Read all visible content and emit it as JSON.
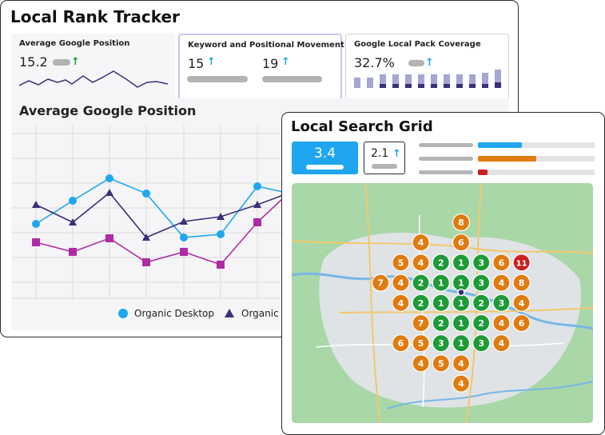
{
  "tracker": {
    "title": "Local Rank Tracker",
    "card1": {
      "title": "Average Google Position",
      "value": "15.2",
      "trend": "up"
    },
    "card2": {
      "title": "Keyword and Positional Movement",
      "value_a": "15",
      "value_b": "19"
    },
    "card3": {
      "title": "Google Local Pack Coverage",
      "value": "32.7%"
    },
    "chart_title": "Average Google Position",
    "legend": [
      "Organic Desktop",
      "Organic"
    ]
  },
  "grid_panel": {
    "title": "Local Search Grid",
    "primary_value": "3.4",
    "secondary_value": "2.1",
    "bars": [
      {
        "fill": 0.38,
        "color": "#1fa6f0"
      },
      {
        "fill": 0.5,
        "color": "#e07b10"
      },
      {
        "fill": 0.08,
        "color": "#cc1f1f"
      }
    ],
    "colors": {
      "green": "#1e9a36",
      "orange": "#e07b10",
      "red": "#cc1f1f"
    },
    "grid_pins": [
      {
        "r": 0,
        "c": 0,
        "v": "8",
        "s": "orange"
      },
      {
        "r": 1,
        "c": -2,
        "v": "4",
        "s": "orange"
      },
      {
        "r": 1,
        "c": 0,
        "v": "6",
        "s": "orange"
      },
      {
        "r": 2,
        "c": -3,
        "v": "5",
        "s": "orange"
      },
      {
        "r": 2,
        "c": -2,
        "v": "4",
        "s": "orange"
      },
      {
        "r": 2,
        "c": -1,
        "v": "2",
        "s": "green"
      },
      {
        "r": 2,
        "c": 0,
        "v": "1",
        "s": "green"
      },
      {
        "r": 2,
        "c": 1,
        "v": "3",
        "s": "green"
      },
      {
        "r": 2,
        "c": 2,
        "v": "6",
        "s": "orange"
      },
      {
        "r": 2,
        "c": 3,
        "v": "11",
        "s": "red"
      },
      {
        "r": 3,
        "c": -4,
        "v": "7",
        "s": "orange"
      },
      {
        "r": 3,
        "c": -3,
        "v": "4",
        "s": "orange"
      },
      {
        "r": 3,
        "c": -2,
        "v": "2",
        "s": "green"
      },
      {
        "r": 3,
        "c": -1,
        "v": "1",
        "s": "green"
      },
      {
        "r": 3,
        "c": 0,
        "v": "1",
        "s": "green"
      },
      {
        "r": 3,
        "c": 1,
        "v": "3",
        "s": "green"
      },
      {
        "r": 3,
        "c": 2,
        "v": "4",
        "s": "orange"
      },
      {
        "r": 3,
        "c": 3,
        "v": "8",
        "s": "orange"
      },
      {
        "r": 4,
        "c": -3,
        "v": "4",
        "s": "orange"
      },
      {
        "r": 4,
        "c": -2,
        "v": "2",
        "s": "green"
      },
      {
        "r": 4,
        "c": -1,
        "v": "1",
        "s": "green"
      },
      {
        "r": 4,
        "c": 0,
        "v": "1",
        "s": "green"
      },
      {
        "r": 4,
        "c": 1,
        "v": "2",
        "s": "green"
      },
      {
        "r": 4,
        "c": 2,
        "v": "3",
        "s": "green"
      },
      {
        "r": 4,
        "c": 3,
        "v": "4",
        "s": "orange"
      },
      {
        "r": 5,
        "c": -2,
        "v": "7",
        "s": "orange"
      },
      {
        "r": 5,
        "c": -1,
        "v": "2",
        "s": "green"
      },
      {
        "r": 5,
        "c": 0,
        "v": "1",
        "s": "green"
      },
      {
        "r": 5,
        "c": 1,
        "v": "2",
        "s": "green"
      },
      {
        "r": 5,
        "c": 2,
        "v": "4",
        "s": "orange"
      },
      {
        "r": 5,
        "c": 3,
        "v": "6",
        "s": "orange"
      },
      {
        "r": 6,
        "c": -3,
        "v": "6",
        "s": "orange"
      },
      {
        "r": 6,
        "c": -2,
        "v": "5",
        "s": "orange"
      },
      {
        "r": 6,
        "c": -1,
        "v": "3",
        "s": "green"
      },
      {
        "r": 6,
        "c": 0,
        "v": "1",
        "s": "green"
      },
      {
        "r": 6,
        "c": 1,
        "v": "3",
        "s": "green"
      },
      {
        "r": 6,
        "c": 2,
        "v": "4",
        "s": "orange"
      },
      {
        "r": 7,
        "c": -2,
        "v": "4",
        "s": "orange"
      },
      {
        "r": 7,
        "c": -1,
        "v": "5",
        "s": "orange"
      },
      {
        "r": 7,
        "c": 0,
        "v": "4",
        "s": "orange"
      },
      {
        "r": 8,
        "c": 0,
        "v": "4",
        "s": "orange"
      }
    ]
  }
}
